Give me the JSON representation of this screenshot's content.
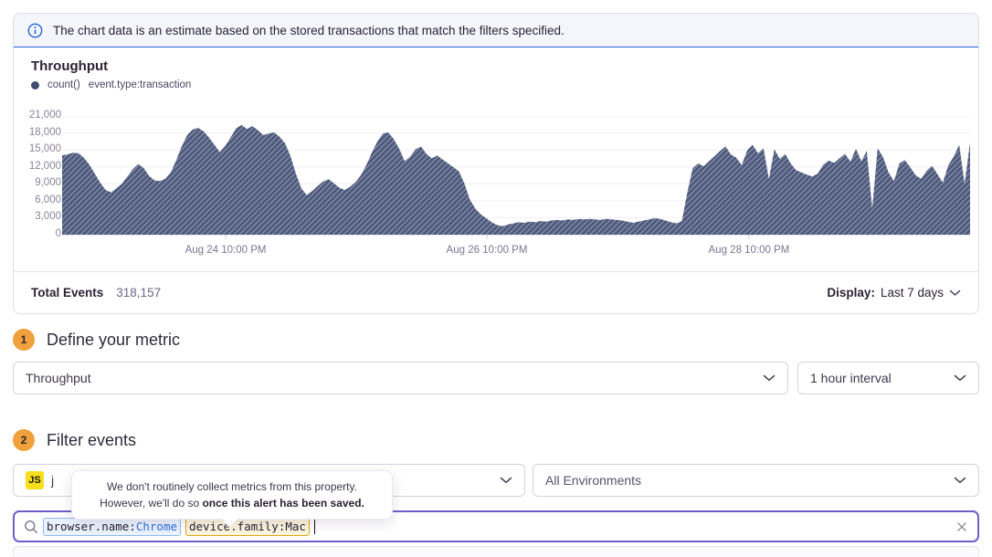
{
  "banner": {
    "text": "The chart data is an estimate based on the stored transactions that match the filters specified."
  },
  "chart": {
    "legend": {
      "series_label": "count()",
      "query_label": "event.type:transaction"
    },
    "footer": {
      "total_label": "Total Events",
      "total_value": "318,157",
      "display_label": "Display:",
      "display_value": "Last 7 days"
    }
  },
  "chart_data": {
    "type": "area",
    "title": "Throughput",
    "xlabel": "",
    "ylabel": "",
    "ylim": [
      0,
      21000
    ],
    "grid": "horizontal",
    "yticks": [
      0,
      3000,
      6000,
      9000,
      12000,
      15000,
      18000,
      21000
    ],
    "ytick_labels": [
      "0",
      "3,000",
      "6,000",
      "9,000",
      "12,000",
      "15,000",
      "18,000",
      "21,000"
    ],
    "xticks": [
      "Aug 24 10:00 PM",
      "Aug 26 10:00 PM",
      "Aug 28 10:00 PM"
    ],
    "total_events": 318157,
    "series": [
      {
        "name": "count()",
        "query": "event.type:transaction",
        "values": [
          14000,
          14200,
          14500,
          14400,
          13600,
          12400,
          10800,
          9200,
          7900,
          7500,
          8200,
          9000,
          10300,
          11600,
          12500,
          11800,
          10400,
          9600,
          9500,
          9900,
          11000,
          13200,
          15600,
          17600,
          18600,
          18900,
          18300,
          17200,
          15900,
          14600,
          15700,
          17200,
          18800,
          19400,
          18700,
          19200,
          18500,
          17600,
          17900,
          18100,
          17300,
          16200,
          13900,
          10800,
          8200,
          7000,
          7700,
          8600,
          9400,
          9800,
          9100,
          8300,
          7900,
          8500,
          9300,
          10600,
          12400,
          14600,
          16500,
          17900,
          18100,
          16900,
          15200,
          13000,
          13800,
          15100,
          15600,
          14300,
          13500,
          14000,
          13300,
          12600,
          11900,
          11200,
          9000,
          6200,
          4600,
          3600,
          2900,
          2200,
          1700,
          1500,
          1800,
          2000,
          2200,
          2100,
          2300,
          2200,
          2400,
          2300,
          2500,
          2600,
          2500,
          2700,
          2600,
          2800,
          2700,
          2800,
          2700,
          2600,
          2800,
          2700,
          2600,
          2500,
          2300,
          2100,
          2300,
          2500,
          2700,
          2900,
          2800,
          2500,
          2200,
          2000,
          2400,
          7500,
          11800,
          12600,
          12100,
          13000,
          13900,
          14800,
          15600,
          14200,
          13600,
          12300,
          14900,
          15900,
          14400,
          15300,
          9800,
          15100,
          13400,
          14300,
          12600,
          11400,
          11000,
          10600,
          10300,
          10800,
          12400,
          13100,
          12700,
          13500,
          14300,
          12900,
          15200,
          13000,
          14800,
          4600,
          15300,
          13700,
          11000,
          9500,
          12600,
          13200,
          11900,
          10500,
          9900,
          11300,
          12200,
          10700,
          9200,
          12300,
          13800,
          15900,
          9000,
          16300
        ]
      }
    ]
  },
  "steps": [
    {
      "number": "1",
      "title": "Define your metric"
    },
    {
      "number": "2",
      "title": "Filter events"
    }
  ],
  "metric": {
    "metric_select": "Throughput",
    "interval_select": "1 hour interval"
  },
  "filters": {
    "project_badge": "JS",
    "project_visible_text": "j",
    "environment_select": "All Environments"
  },
  "tooltip": {
    "line1": "We don't routinely collect metrics from this property.",
    "line2_normal": "However, we'll do so ",
    "line2_bold": "once this alert has been saved."
  },
  "search": {
    "tokens": [
      {
        "key": "browser.name:",
        "value": "Chrome",
        "style": "blue"
      },
      {
        "key": "device.family:",
        "value": "Mac",
        "style": "yellow"
      }
    ]
  },
  "colors": {
    "accent_purple": "#6c5fc7",
    "banner_blue": "#2562d4",
    "chart_fill": "#4e5a7d",
    "chart_hatch": "rgba(255,255,255,0.32)",
    "badge_amber": "#f0a13b",
    "js_yellow": "#f7df1e",
    "token_blue_border": "#92b9f0",
    "token_yellow_border": "#dfa511",
    "token_value_blue": "#2f6fe2"
  }
}
